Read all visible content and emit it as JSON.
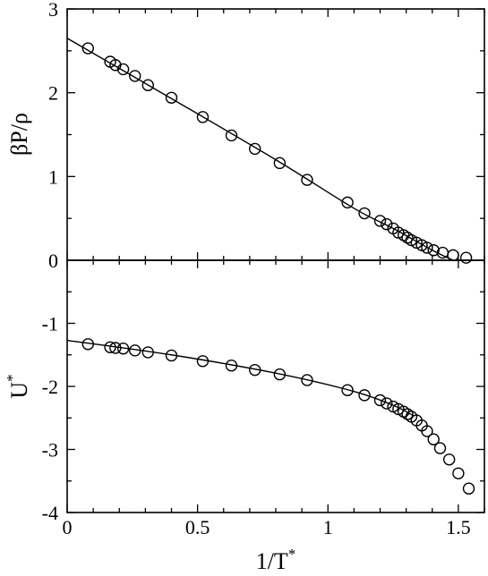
{
  "chart_data": [
    {
      "type": "scatter",
      "title": "",
      "xlabel": "1/T*",
      "ylabel": "βP/ρ",
      "xlim": [
        0,
        1.6
      ],
      "ylim": [
        0,
        3
      ],
      "grid": false,
      "x_ticks": [
        0,
        0.5,
        1,
        1.5
      ],
      "x_tick_labels": [
        "0",
        "0.5",
        "1",
        "1.5"
      ],
      "y_ticks": [
        0,
        1,
        2,
        3
      ],
      "y_tick_labels": [
        "0",
        "1",
        "2",
        "3"
      ],
      "series": [
        {
          "marker": "circle",
          "points": [
            [
              0.08,
              2.53
            ],
            [
              0.165,
              2.37
            ],
            [
              0.185,
              2.33
            ],
            [
              0.215,
              2.28
            ],
            [
              0.26,
              2.2
            ],
            [
              0.31,
              2.09
            ],
            [
              0.4,
              1.94
            ],
            [
              0.52,
              1.71
            ],
            [
              0.63,
              1.49
            ],
            [
              0.72,
              1.33
            ],
            [
              0.815,
              1.16
            ],
            [
              0.92,
              0.96
            ],
            [
              1.075,
              0.69
            ],
            [
              1.14,
              0.56
            ],
            [
              1.2,
              0.47
            ],
            [
              1.225,
              0.43
            ],
            [
              1.25,
              0.38
            ],
            [
              1.27,
              0.33
            ],
            [
              1.29,
              0.3
            ],
            [
              1.305,
              0.27
            ],
            [
              1.32,
              0.24
            ],
            [
              1.34,
              0.21
            ],
            [
              1.36,
              0.18
            ],
            [
              1.38,
              0.15
            ],
            [
              1.405,
              0.12
            ],
            [
              1.44,
              0.09
            ],
            [
              1.48,
              0.06
            ],
            [
              1.53,
              0.03
            ]
          ]
        },
        {
          "line": "solid",
          "points": [
            [
              0,
              2.65
            ],
            [
              0.4,
              1.93
            ],
            [
              0.8,
              1.2
            ],
            [
              1.1,
              0.62
            ],
            [
              1.25,
              0.38
            ],
            [
              1.4,
              0.12
            ],
            [
              1.48,
              0.0
            ]
          ]
        }
      ]
    },
    {
      "type": "scatter",
      "title": "",
      "xlabel": "1/T*",
      "ylabel": "U*",
      "xlim": [
        0,
        1.6
      ],
      "ylim": [
        -4,
        0
      ],
      "grid": false,
      "x_ticks": [
        0,
        0.5,
        1,
        1.5
      ],
      "x_tick_labels": [
        "0",
        "0.5",
        "1",
        "1.5"
      ],
      "y_ticks": [
        -4,
        -3,
        -2,
        -1
      ],
      "y_tick_labels": [
        "-4",
        "-3",
        "-2",
        "-1"
      ],
      "series": [
        {
          "marker": "circle",
          "points": [
            [
              0.08,
              -1.33
            ],
            [
              0.165,
              -1.38
            ],
            [
              0.185,
              -1.39
            ],
            [
              0.215,
              -1.4
            ],
            [
              0.26,
              -1.43
            ],
            [
              0.31,
              -1.46
            ],
            [
              0.4,
              -1.51
            ],
            [
              0.52,
              -1.6
            ],
            [
              0.63,
              -1.67
            ],
            [
              0.72,
              -1.74
            ],
            [
              0.815,
              -1.81
            ],
            [
              0.92,
              -1.9
            ],
            [
              1.075,
              -2.06
            ],
            [
              1.14,
              -2.14
            ],
            [
              1.2,
              -2.22
            ],
            [
              1.225,
              -2.27
            ],
            [
              1.25,
              -2.32
            ],
            [
              1.27,
              -2.36
            ],
            [
              1.29,
              -2.4
            ],
            [
              1.305,
              -2.44
            ],
            [
              1.32,
              -2.48
            ],
            [
              1.34,
              -2.54
            ],
            [
              1.36,
              -2.62
            ],
            [
              1.38,
              -2.71
            ],
            [
              1.405,
              -2.84
            ],
            [
              1.43,
              -2.98
            ],
            [
              1.465,
              -3.16
            ],
            [
              1.5,
              -3.38
            ],
            [
              1.54,
              -3.62
            ]
          ]
        },
        {
          "line": "solid",
          "points": [
            [
              0,
              -1.27
            ],
            [
              0.4,
              -1.5
            ],
            [
              0.8,
              -1.79
            ],
            [
              1.1,
              -2.08
            ],
            [
              1.25,
              -2.3
            ],
            [
              1.33,
              -2.47
            ]
          ]
        }
      ]
    }
  ]
}
